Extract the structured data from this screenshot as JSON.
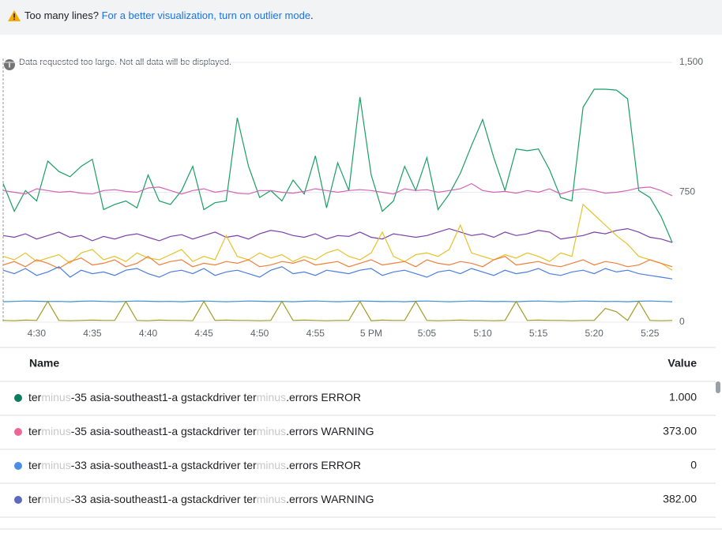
{
  "banner": {
    "prefix": "Too many lines?",
    "link": "For a better visualization, turn on outlier mode",
    "suffix": "."
  },
  "chart_data": {
    "type": "line",
    "annotation": "Data requested too large. Not all data will be displayed.",
    "categories": [
      null,
      null,
      null,
      "4:30",
      null,
      null,
      null,
      null,
      "4:35",
      null,
      null,
      null,
      null,
      "4:40",
      null,
      null,
      null,
      null,
      "4:45",
      null,
      null,
      null,
      null,
      "4:50",
      null,
      null,
      null,
      null,
      "4:55",
      null,
      null,
      null,
      null,
      "5 PM",
      null,
      null,
      null,
      null,
      "5:05",
      null,
      null,
      null,
      null,
      "5:10",
      null,
      null,
      null,
      null,
      "5:15",
      null,
      null,
      null,
      null,
      "5:20",
      null,
      null,
      null,
      null,
      "5:25",
      null,
      null
    ],
    "ylim": [
      0,
      1500
    ],
    "yticks": [
      0,
      750,
      {
        "value": 1500,
        "label": "1,500"
      }
    ],
    "grid": true,
    "series": [
      {
        "color": "#1b9e65",
        "values": [
          800,
          640,
          760,
          700,
          930,
          870,
          840,
          900,
          940,
          650,
          680,
          700,
          660,
          850,
          700,
          680,
          760,
          900,
          650,
          690,
          700,
          1180,
          900,
          720,
          760,
          700,
          820,
          740,
          960,
          660,
          920,
          760,
          1300,
          850,
          640,
          700,
          900,
          760,
          950,
          650,
          740,
          860,
          1020,
          1170,
          950,
          760,
          1000,
          990,
          1000,
          880,
          720,
          700,
          1240,
          1345,
          1345,
          1340,
          1290,
          760,
          720,
          610,
          460
        ]
      },
      {
        "color": "#d264b6",
        "values": [
          760,
          750,
          740,
          770,
          760,
          750,
          755,
          745,
          740,
          760,
          765,
          755,
          750,
          775,
          780,
          760,
          740,
          760,
          770,
          750,
          760,
          745,
          740,
          760,
          760,
          750,
          745,
          755,
          770,
          760,
          750,
          760,
          765,
          760,
          750,
          740,
          770,
          760,
          765,
          750,
          760,
          770,
          800,
          760,
          750,
          755,
          745,
          760,
          750,
          770,
          740,
          760,
          770,
          760,
          745,
          750,
          760,
          775,
          780,
          760,
          730
        ]
      },
      {
        "color": "#7b3fa8",
        "values": [
          500,
          490,
          510,
          480,
          500,
          520,
          490,
          500,
          470,
          495,
          480,
          500,
          510,
          490,
          470,
          495,
          505,
          480,
          500,
          520,
          490,
          500,
          480,
          510,
          530,
          520,
          500,
          490,
          510,
          480,
          500,
          495,
          520,
          490,
          480,
          510,
          500,
          490,
          500,
          520,
          540,
          520,
          500,
          510,
          490,
          520,
          500,
          510,
          530,
          520,
          480,
          490,
          500,
          520,
          510,
          530,
          540,
          520,
          490,
          480,
          460
        ]
      },
      {
        "color": "#e6c229",
        "values": [
          380,
          360,
          400,
          350,
          370,
          390,
          340,
          400,
          420,
          360,
          380,
          350,
          400,
          370,
          360,
          390,
          420,
          350,
          380,
          360,
          500,
          380,
          360,
          400,
          370,
          390,
          350,
          380,
          360,
          400,
          420,
          380,
          360,
          400,
          520,
          380,
          350,
          390,
          400,
          380,
          420,
          560,
          400,
          380,
          360,
          390,
          370,
          400,
          380,
          350,
          400,
          380,
          680,
          620,
          560,
          500,
          450,
          380,
          360,
          340,
          300
        ]
      },
      {
        "color": "#f07e3b",
        "values": [
          330,
          350,
          320,
          360,
          340,
          310,
          350,
          370,
          330,
          340,
          360,
          320,
          340,
          380,
          330,
          350,
          360,
          320,
          340,
          330,
          350,
          340,
          360,
          320,
          330,
          350,
          340,
          360,
          330,
          340,
          350,
          320,
          340,
          360,
          330,
          340,
          350,
          320,
          360,
          340,
          330,
          350,
          340,
          320,
          360,
          380,
          330,
          340,
          350,
          330,
          320,
          340,
          360,
          330,
          350,
          340,
          320,
          330,
          360,
          340,
          320
        ]
      },
      {
        "color": "#4a7ee0",
        "values": [
          300,
          280,
          310,
          270,
          290,
          320,
          260,
          300,
          280,
          290,
          270,
          300,
          310,
          280,
          260,
          290,
          300,
          280,
          310,
          270,
          290,
          300,
          280,
          260,
          300,
          320,
          280,
          290,
          270,
          300,
          290,
          280,
          300,
          310,
          270,
          290,
          300,
          280,
          260,
          290,
          300,
          280,
          310,
          290,
          270,
          300,
          280,
          290,
          310,
          280,
          270,
          290,
          300,
          280,
          310,
          290,
          300,
          280,
          270,
          260,
          250
        ]
      },
      {
        "color": "#3b8fd6",
        "values": [
          118,
          120,
          122,
          121,
          119,
          120,
          118,
          121,
          122,
          120,
          118,
          120,
          122,
          121,
          119,
          120,
          118,
          121,
          122,
          120,
          118,
          120,
          122,
          121,
          119,
          120,
          118,
          121,
          122,
          120,
          118,
          120,
          122,
          121,
          119,
          120,
          118,
          121,
          122,
          120,
          118,
          120,
          122,
          121,
          119,
          120,
          118,
          121,
          122,
          120,
          118,
          120,
          122,
          121,
          119,
          120,
          118,
          121,
          122,
          120,
          118
        ]
      },
      {
        "color": "#9e9d24",
        "values": [
          10,
          8,
          12,
          10,
          120,
          10,
          8,
          10,
          12,
          10,
          10,
          120,
          10,
          8,
          12,
          10,
          10,
          8,
          120,
          10,
          12,
          10,
          10,
          8,
          10,
          120,
          10,
          12,
          10,
          8,
          10,
          10,
          120,
          8,
          12,
          10,
          10,
          120,
          10,
          8,
          10,
          12,
          10,
          10,
          8,
          10,
          120,
          10,
          12,
          10,
          10,
          8,
          10,
          10,
          80,
          60,
          10,
          120,
          10,
          8,
          10
        ]
      }
    ]
  },
  "table": {
    "headers": [
      "Name",
      "Value"
    ],
    "rows": [
      {
        "color": "#0e7c61",
        "name": [
          "ter",
          "minus",
          "-35 asia-southeast1-a gstackdriver ter",
          "minus",
          ".errors ERROR"
        ],
        "value": "1.000"
      },
      {
        "color": "#ec6796",
        "name": [
          "ter",
          "minus",
          "-35 asia-southeast1-a gstackdriver ter",
          "minus",
          ".errors WARNING"
        ],
        "value": "373.00"
      },
      {
        "color": "#4a90e2",
        "name": [
          "ter",
          "minus",
          "-33 asia-southeast1-a gstackdriver ter",
          "minus",
          ".errors ERROR"
        ],
        "value": "0"
      },
      {
        "color": "#5c6bc0",
        "name": [
          "ter",
          "minus",
          "-33 asia-southeast1-a gstackdriver ter",
          "minus",
          ".errors WARNING"
        ],
        "value": "382.00"
      }
    ]
  }
}
